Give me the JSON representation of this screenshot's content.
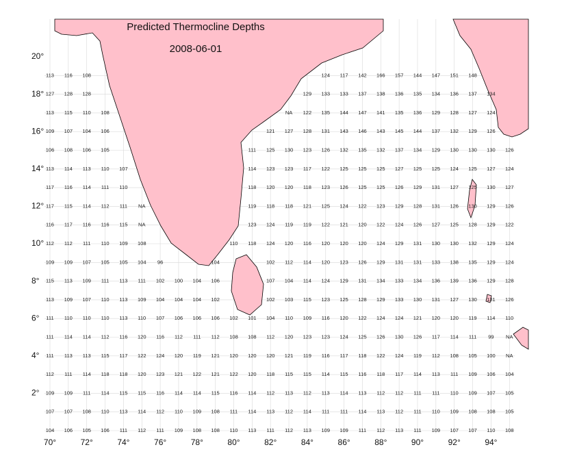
{
  "map": {
    "title": "Predicted Thermocline Depths",
    "date": "2008-06-01",
    "lat_labels": [
      {
        "value": 20,
        "label": "20°"
      },
      {
        "value": 18,
        "label": "18°"
      },
      {
        "value": 16,
        "label": "16°"
      },
      {
        "value": 14,
        "label": "14°"
      },
      {
        "value": 12,
        "label": "12°"
      },
      {
        "value": 10,
        "label": "10°"
      },
      {
        "value": 8,
        "label": "8°"
      },
      {
        "value": 6,
        "label": "6°"
      },
      {
        "value": 4,
        "label": "4°"
      },
      {
        "value": 2,
        "label": "2°"
      }
    ],
    "lon_labels": [
      {
        "value": 70,
        "label": "70°"
      },
      {
        "value": 72,
        "label": "72°"
      },
      {
        "value": 74,
        "label": "74°"
      },
      {
        "value": 76,
        "label": "76°"
      },
      {
        "value": 78,
        "label": "78°"
      },
      {
        "value": 80,
        "label": "80°"
      },
      {
        "value": 82,
        "label": "82°"
      },
      {
        "value": 84,
        "label": "84°"
      },
      {
        "value": 86,
        "label": "86°"
      },
      {
        "value": 88,
        "label": "88°"
      },
      {
        "value": 90,
        "label": "90°"
      },
      {
        "value": 92,
        "label": "92°"
      },
      {
        "value": 94,
        "label": "94°"
      }
    ],
    "grid": {
      "rows": [
        [
          113,
          116,
          108,
          null,
          null,
          null,
          null,
          null,
          null,
          null,
          null,
          null,
          null,
          null,
          null,
          124,
          117,
          142,
          166,
          157,
          144,
          147,
          151,
          148,
          null,
          null
        ],
        [
          127,
          128,
          128,
          null,
          null,
          null,
          null,
          null,
          null,
          null,
          null,
          null,
          null,
          null,
          129,
          133,
          133,
          137,
          138,
          136,
          135,
          134,
          136,
          137,
          134,
          null
        ],
        [
          113,
          115,
          110,
          108,
          null,
          null,
          null,
          null,
          null,
          null,
          null,
          null,
          null,
          "NA",
          122,
          135,
          144,
          147,
          141,
          135,
          136,
          129,
          128,
          127,
          124,
          null
        ],
        [
          109,
          107,
          104,
          106,
          null,
          null,
          null,
          null,
          null,
          null,
          null,
          null,
          121,
          127,
          128,
          131,
          143,
          146,
          143,
          145,
          144,
          137,
          132,
          129,
          126,
          null
        ],
        [
          106,
          108,
          106,
          105,
          null,
          null,
          null,
          null,
          null,
          null,
          null,
          111,
          125,
          130,
          123,
          126,
          132,
          135,
          132,
          137,
          134,
          129,
          130,
          130,
          130,
          126
        ],
        [
          113,
          114,
          113,
          110,
          107,
          null,
          null,
          null,
          null,
          null,
          null,
          114,
          123,
          123,
          117,
          122,
          125,
          125,
          125,
          127,
          125,
          125,
          124,
          125,
          127,
          124
        ],
        [
          117,
          116,
          114,
          111,
          110,
          null,
          null,
          null,
          null,
          null,
          null,
          118,
          120,
          120,
          118,
          123,
          126,
          125,
          125,
          126,
          129,
          131,
          127,
          125,
          130,
          127
        ],
        [
          117,
          115,
          114,
          112,
          111,
          "NA",
          null,
          null,
          null,
          null,
          null,
          119,
          118,
          118,
          121,
          125,
          124,
          122,
          123,
          129,
          128,
          131,
          126,
          130,
          129,
          126
        ],
        [
          116,
          117,
          116,
          116,
          115,
          "NA",
          null,
          null,
          null,
          null,
          null,
          123,
          124,
          119,
          119,
          122,
          121,
          120,
          122,
          124,
          126,
          127,
          125,
          128,
          129,
          122
        ],
        [
          112,
          112,
          111,
          110,
          109,
          108,
          null,
          null,
          null,
          null,
          110,
          118,
          124,
          120,
          116,
          120,
          120,
          120,
          124,
          129,
          131,
          130,
          130,
          132,
          129,
          124
        ],
        [
          109,
          109,
          107,
          105,
          105,
          104,
          96,
          null,
          null,
          104,
          null,
          null,
          102,
          112,
          114,
          120,
          123,
          126,
          129,
          131,
          131,
          133,
          138,
          135,
          129,
          124
        ],
        [
          115,
          113,
          109,
          111,
          113,
          111,
          102,
          100,
          104,
          106,
          null,
          null,
          107,
          104,
          114,
          124,
          129,
          131,
          134,
          133,
          134,
          136,
          139,
          136,
          129,
          128
        ],
        [
          113,
          109,
          107,
          110,
          113,
          109,
          104,
          104,
          104,
          102,
          null,
          null,
          102,
          103,
          115,
          123,
          125,
          128,
          129,
          133,
          130,
          131,
          127,
          130,
          131,
          126
        ],
        [
          111,
          110,
          110,
          110,
          113,
          110,
          107,
          106,
          106,
          106,
          102,
          101,
          104,
          110,
          109,
          116,
          120,
          122,
          124,
          124,
          121,
          120,
          120,
          119,
          114,
          110
        ],
        [
          111,
          114,
          114,
          112,
          116,
          120,
          116,
          112,
          111,
          112,
          108,
          108,
          112,
          120,
          123,
          123,
          124,
          125,
          126,
          130,
          126,
          117,
          114,
          111,
          99,
          "NA"
        ],
        [
          111,
          113,
          113,
          115,
          117,
          122,
          124,
          120,
          119,
          121,
          120,
          120,
          120,
          121,
          119,
          116,
          117,
          118,
          122,
          124,
          119,
          112,
          108,
          105,
          100,
          "NA"
        ],
        [
          112,
          111,
          114,
          118,
          118,
          120,
          123,
          121,
          122,
          121,
          122,
          120,
          118,
          115,
          115,
          114,
          115,
          116,
          118,
          117,
          114,
          113,
          111,
          109,
          106,
          104
        ],
        [
          109,
          109,
          111,
          114,
          115,
          115,
          116,
          114,
          114,
          115,
          116,
          114,
          112,
          113,
          112,
          113,
          114,
          113,
          112,
          112,
          111,
          111,
          110,
          109,
          107,
          105
        ],
        [
          107,
          107,
          108,
          110,
          113,
          114,
          112,
          110,
          109,
          108,
          111,
          114,
          113,
          112,
          114,
          111,
          111,
          114,
          113,
          112,
          111,
          110,
          109,
          108,
          108,
          105
        ],
        [
          104,
          106,
          105,
          106,
          111,
          112,
          111,
          109,
          108,
          108,
          110,
          113,
          111,
          112,
          113,
          109,
          109,
          111,
          112,
          113,
          111,
          109,
          107,
          107,
          110,
          108
        ]
      ]
    }
  }
}
